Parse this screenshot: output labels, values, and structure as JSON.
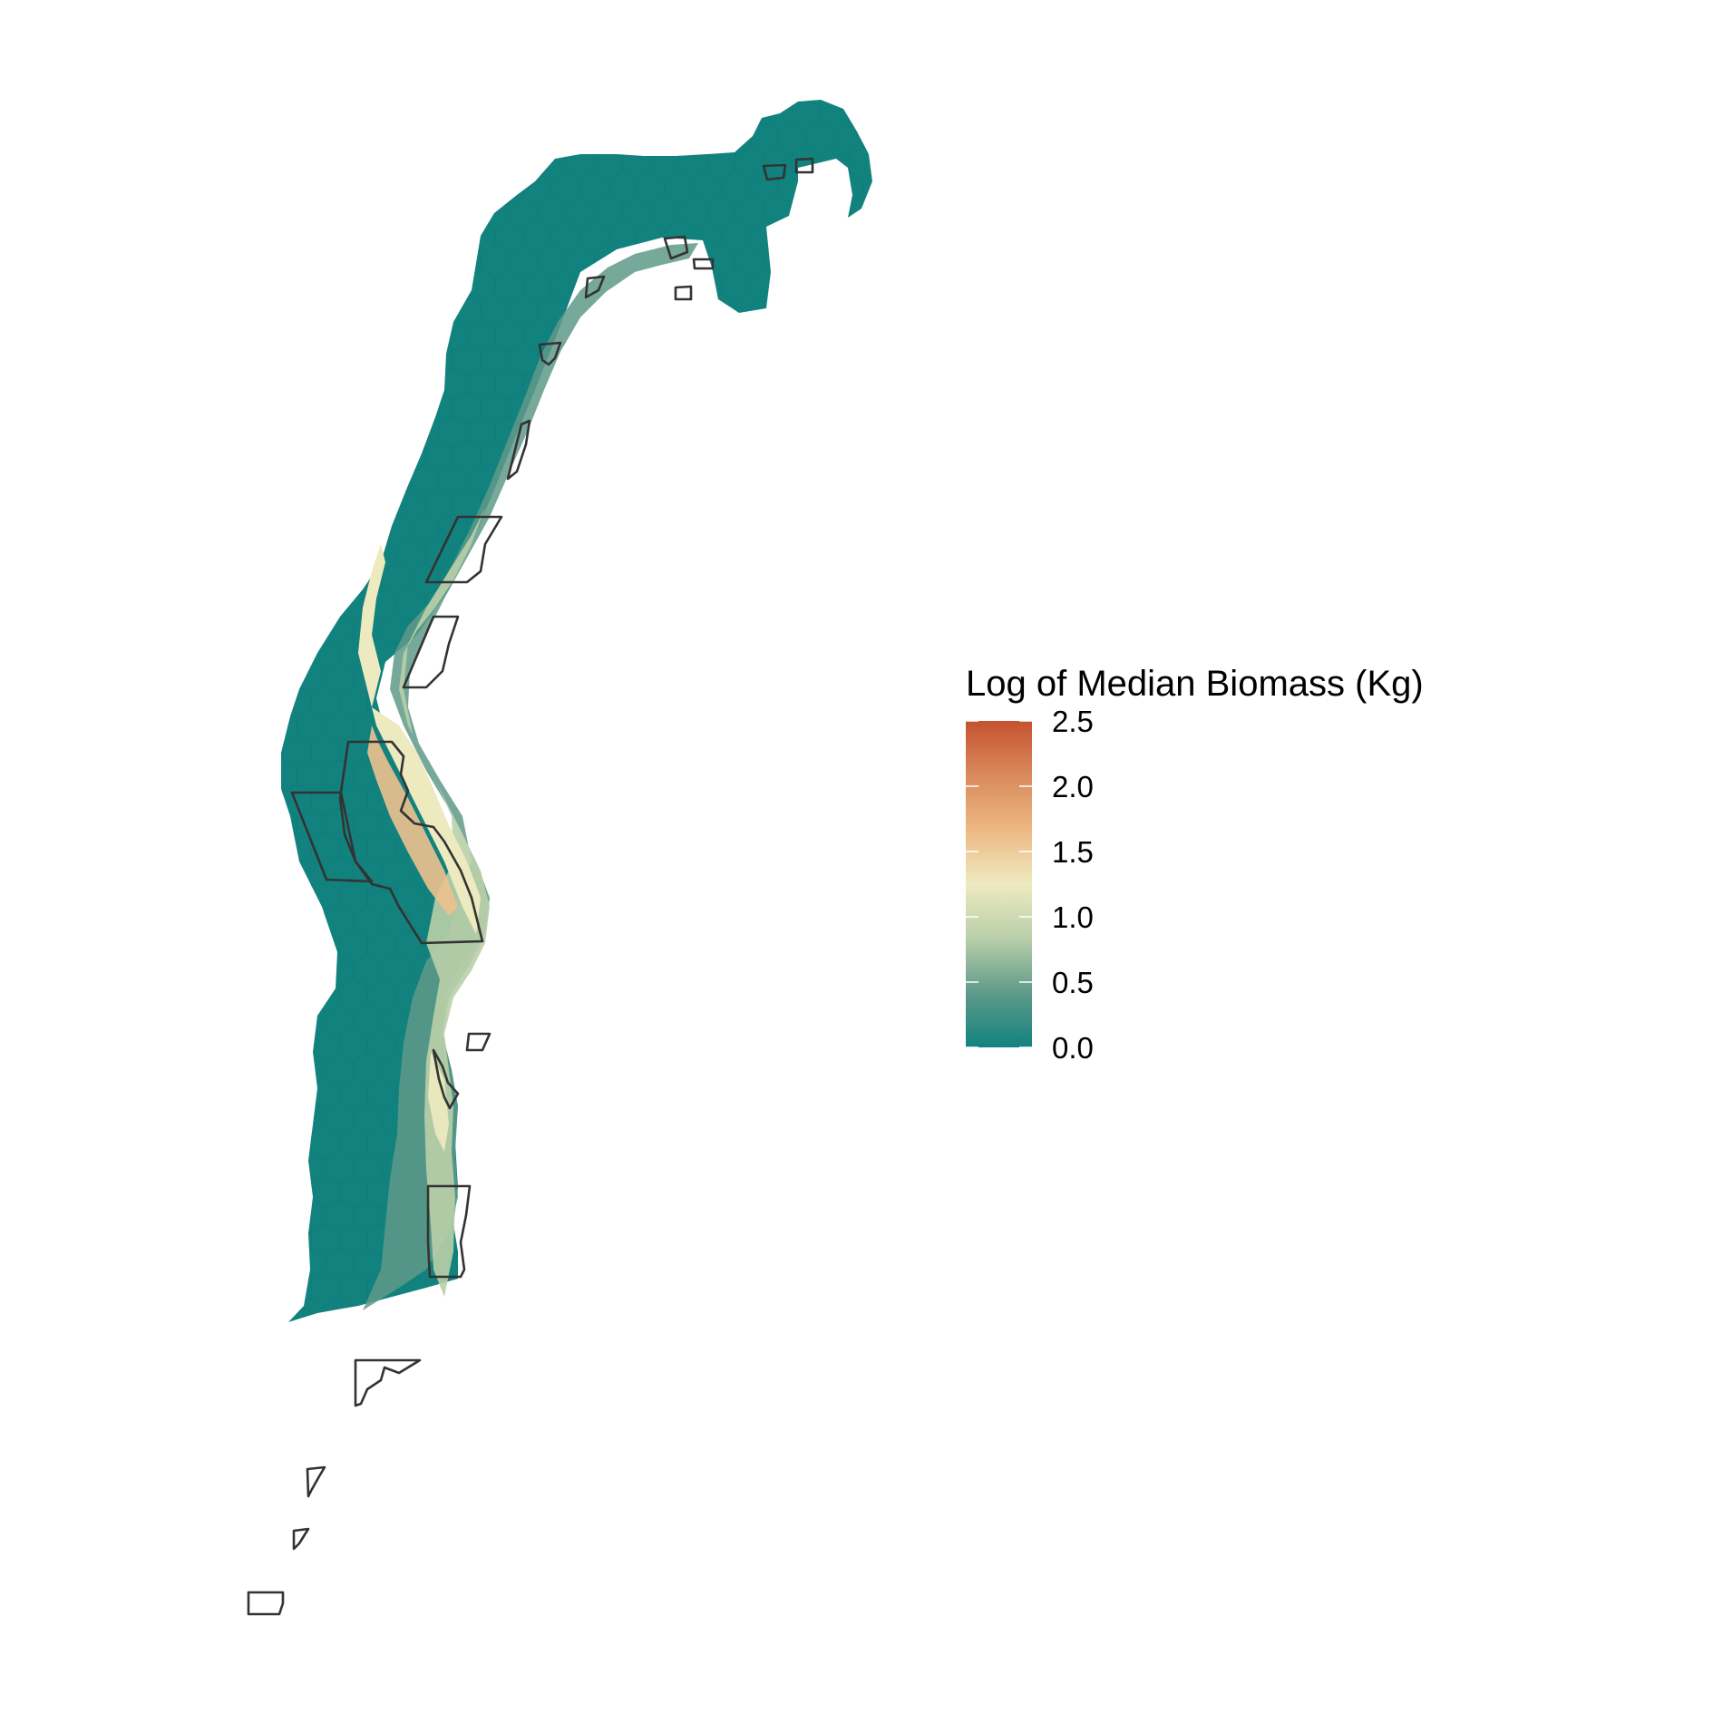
{
  "legend": {
    "title": "Log of Median Biomass (Kg)",
    "min": 0.0,
    "max": 2.5,
    "ticks": [
      "0.0",
      "0.5",
      "1.0",
      "1.5",
      "2.0",
      "2.5"
    ],
    "palette": [
      "#12827f",
      "#5f9a8a",
      "#b9cfa9",
      "#eeeac0",
      "#edb882",
      "#d98a5c",
      "#c5522f"
    ]
  },
  "map": {
    "background_color": "#ffffff",
    "outline_color": "#333333",
    "low_color": "#12827f"
  }
}
